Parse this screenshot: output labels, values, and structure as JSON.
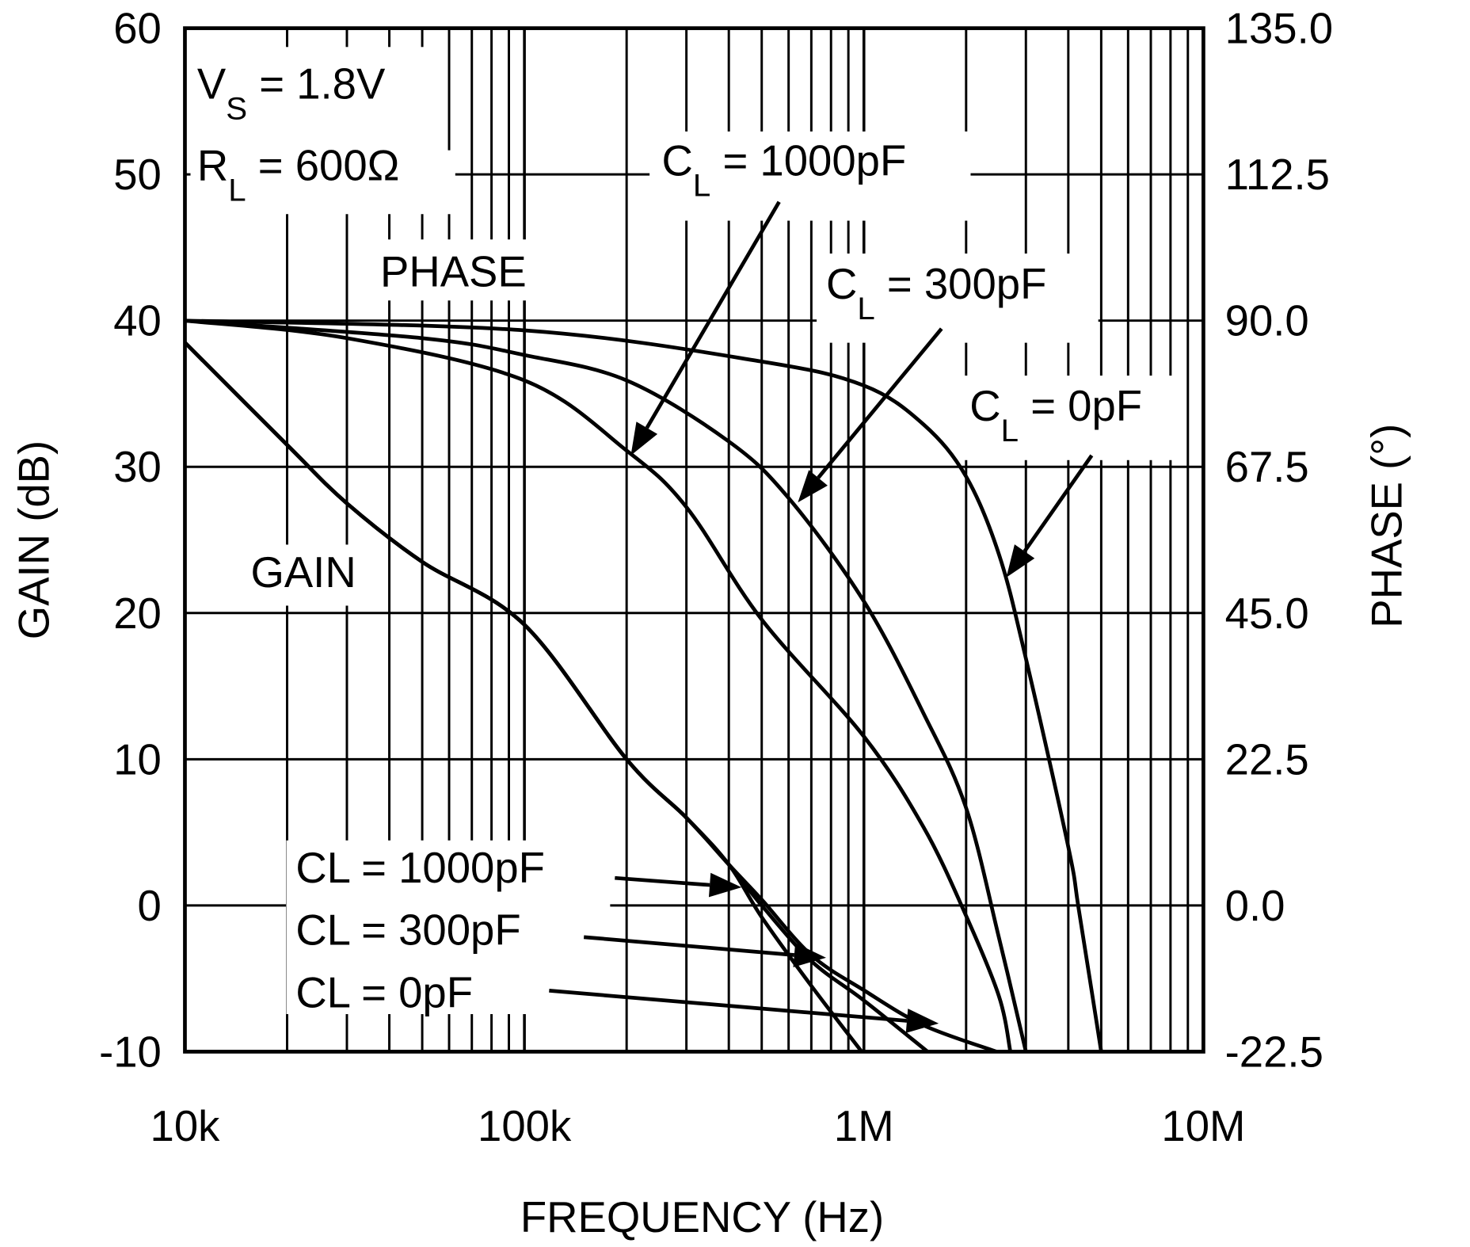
{
  "chart_data": {
    "type": "line",
    "xlabel": "FREQUENCY (Hz)",
    "ylabel": "GAIN (dB)",
    "y2label": "PHASE (°)",
    "xscale": "log",
    "xlim": [
      10000,
      10000000
    ],
    "ylim": [
      -10,
      60
    ],
    "y2lim": [
      -22.5,
      135
    ],
    "grid": true,
    "x_ticks": [
      {
        "value": 10000,
        "label": "10k"
      },
      {
        "value": 100000,
        "label": "100k"
      },
      {
        "value": 1000000,
        "label": "1M"
      },
      {
        "value": 10000000,
        "label": "10M"
      }
    ],
    "y_ticks": [
      {
        "value": 60,
        "label": "60"
      },
      {
        "value": 50,
        "label": "50"
      },
      {
        "value": 40,
        "label": "40"
      },
      {
        "value": 30,
        "label": "30"
      },
      {
        "value": 20,
        "label": "20"
      },
      {
        "value": 10,
        "label": "10"
      },
      {
        "value": 0,
        "label": "0"
      },
      {
        "value": -10,
        "label": "-10"
      }
    ],
    "y2_ticks": [
      {
        "value": 135,
        "label": "135.0"
      },
      {
        "value": 112.5,
        "label": "112.5"
      },
      {
        "value": 90,
        "label": "90.0"
      },
      {
        "value": 67.5,
        "label": "67.5"
      },
      {
        "value": 45,
        "label": "45.0"
      },
      {
        "value": 22.5,
        "label": "22.5"
      },
      {
        "value": 0,
        "label": "0.0"
      },
      {
        "value": -22.5,
        "label": "-22.5"
      }
    ],
    "conditions": {
      "vs_main": "V",
      "vs_sub": "S",
      "vs_value": " = 1.8V",
      "rl_main": "R",
      "rl_sub": "L",
      "rl_value": " = 600Ω"
    },
    "group_labels": {
      "phase": "PHASE",
      "gain": "GAIN"
    },
    "series": [
      {
        "name": "CL = 1000pF",
        "axis": "gain",
        "label_main": "CL = 1000pF",
        "x": [
          10000,
          20000,
          30000,
          50000,
          100000,
          200000,
          300000,
          400000,
          500000,
          700000,
          985000
        ],
        "y": [
          38.5,
          31.5,
          27.5,
          23.5,
          19.2,
          10,
          6,
          2.8,
          -0.8,
          -5.5,
          -10
        ]
      },
      {
        "name": "CL = 300pF",
        "axis": "gain",
        "label_main": "CL = 300pF",
        "x": [
          10000,
          20000,
          30000,
          50000,
          100000,
          200000,
          300000,
          400000,
          500000,
          700000,
          1000000,
          1540000
        ],
        "y": [
          38.5,
          31.5,
          27.5,
          23.5,
          19.2,
          10,
          6,
          2.8,
          0,
          -3.8,
          -6.5,
          -10
        ]
      },
      {
        "name": "CL = 0pF",
        "axis": "gain",
        "label_main": "CL = 0pF",
        "x": [
          10000,
          20000,
          30000,
          50000,
          100000,
          200000,
          300000,
          400000,
          500000,
          700000,
          1000000,
          1500000,
          2460000
        ],
        "y": [
          38.5,
          31.5,
          27.5,
          23.5,
          19.2,
          10,
          6,
          2.8,
          0.4,
          -3.4,
          -5.8,
          -8.2,
          -10
        ]
      },
      {
        "name": "CL = 1000pF",
        "axis": "phase",
        "label_main": "C",
        "label_sub": "L",
        "label_rest": " = 1000pF",
        "x": [
          10000,
          30000,
          100000,
          200000,
          300000,
          500000,
          1000000,
          1500000,
          2000000,
          2500000,
          2700000
        ],
        "y": [
          90,
          87.3,
          80.8,
          70,
          61.3,
          44,
          26,
          12,
          -1.6,
          -14,
          -22.5
        ]
      },
      {
        "name": "CL = 300pF",
        "axis": "phase",
        "label_main": "C",
        "label_sub": "L",
        "label_rest": " = 300pF",
        "x": [
          10000,
          50000,
          100000,
          200000,
          400000,
          600000,
          1000000,
          1500000,
          2000000,
          2500000,
          3000000
        ],
        "y": [
          90,
          87.3,
          84.7,
          80.8,
          71.4,
          62.7,
          46.8,
          29.5,
          15,
          -5,
          -22.5
        ]
      },
      {
        "name": "CL = 0pF",
        "axis": "phase",
        "label_main": "C",
        "label_sub": "L",
        "label_rest": " = 0pF",
        "x": [
          10000,
          100000,
          500000,
          1000000,
          1500000,
          2000000,
          2500000,
          3000000,
          4000000,
          4300000,
          5000000
        ],
        "y": [
          90,
          88.5,
          83.7,
          80,
          74,
          66,
          54,
          38,
          9,
          -0.8,
          -22.5
        ]
      }
    ]
  }
}
